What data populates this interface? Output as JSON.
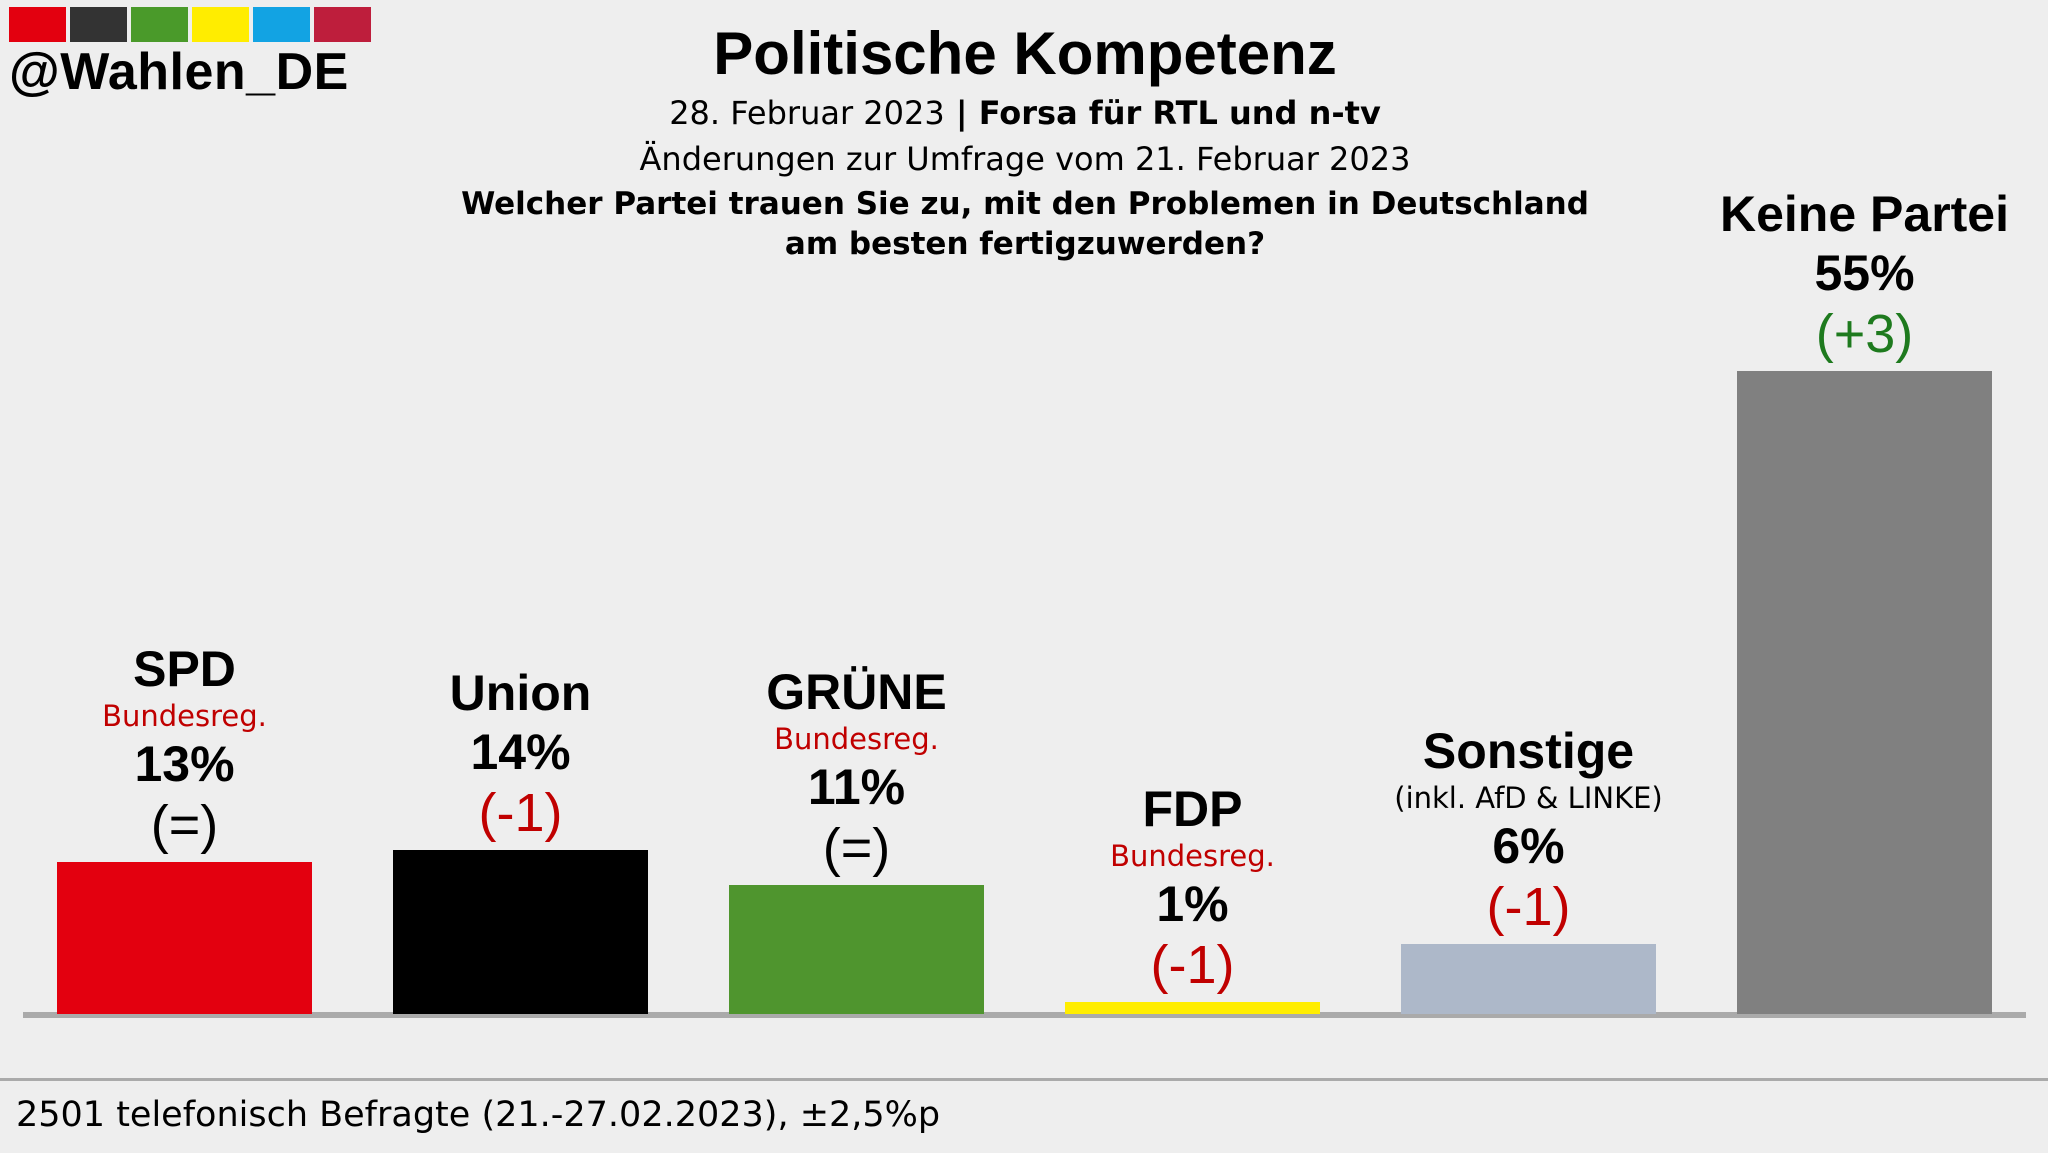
{
  "logo": {
    "handle": "@Wahlen_DE",
    "swatch_colors": [
      "#e3000f",
      "#333333",
      "#4a9a2a",
      "#ffed00",
      "#12a3e3",
      "#be1e3c"
    ]
  },
  "header": {
    "title": "Politische Kompetenz",
    "date": "28. Februar 2023",
    "separator": " | ",
    "source": "Forsa für RTL und n-tv",
    "changes_note": "Änderungen zur Umfrage vom 21. Februar 2023",
    "question_line1": "Welcher Partei trauen Sie zu, mit den Problemen in Deutschland",
    "question_line2": "am besten fertigzuwerden?"
  },
  "chart_data": {
    "type": "bar",
    "title": "Politische Kompetenz",
    "unit": "%",
    "ylim": [
      0,
      55
    ],
    "grid": false,
    "categories": [
      "SPD",
      "Union",
      "GRÜNE",
      "FDP",
      "Sonstige",
      "Keine Partei"
    ],
    "values": [
      13,
      14,
      11,
      1,
      6,
      55
    ],
    "value_labels": [
      "13%",
      "14%",
      "11%",
      "1%",
      "6%",
      "55%"
    ],
    "changes": [
      "(=)",
      "(-1)",
      "(=)",
      "(-1)",
      "(-1)",
      "(+3)"
    ],
    "change_values": [
      0,
      -1,
      0,
      -1,
      -1,
      3
    ],
    "notes": [
      "Bundesreg.",
      "",
      "Bundesreg.",
      "Bundesreg.",
      "(inkl. AfD & LINKE)",
      ""
    ],
    "colors": [
      "#e3000f",
      "#000000",
      "#4f952e",
      "#ffed00",
      "#adb8c9",
      "#808080"
    ],
    "change_colors": {
      "neutral": "#000000",
      "negative": "#c00000",
      "positive": "#1e7a1e"
    }
  },
  "footer": {
    "text": "2501 telefonisch Befragte (21.-27.02.2023), ±2,5%p"
  }
}
